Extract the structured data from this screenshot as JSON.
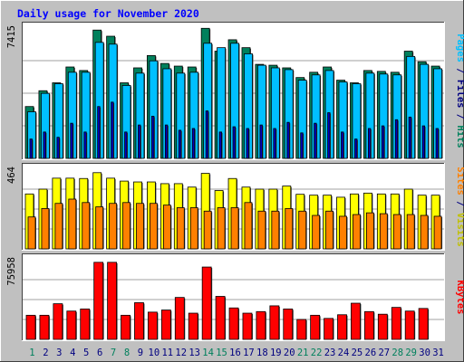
{
  "title": "Daily usage for November 2020",
  "colors": {
    "background": "#c0c0c0",
    "plot_background": "#ffffff",
    "title_text": "#0000ff",
    "hits": "#00805c",
    "files": "#00c0ff",
    "pages": "#0000c0",
    "visits": "#ffff00",
    "sites": "#ff8000",
    "kbytes": "#ff0000",
    "weekend_tick": "#00805c",
    "weekday_tick": "#000080"
  },
  "right_labels": {
    "top": [
      {
        "text": "Pages",
        "color": "#00c0ff"
      },
      {
        "text": " / ",
        "color": "#000080"
      },
      {
        "text": "Files",
        "color": "#000080"
      },
      {
        "text": " / ",
        "color": "#000080"
      },
      {
        "text": "Hits",
        "color": "#00805c"
      }
    ],
    "middle": [
      {
        "text": "Sites",
        "color": "#ff8000"
      },
      {
        "text": " / ",
        "color": "#000080"
      },
      {
        "text": "Visits",
        "color": "#c0c000"
      }
    ],
    "bottom": [
      {
        "text": "KBytes",
        "color": "#ff0000"
      }
    ]
  },
  "chart_data": [
    {
      "type": "bar",
      "panel": "hits-files-pages",
      "ymax_label": "7415",
      "ylim": [
        0,
        7415
      ],
      "categories": [
        "1",
        "2",
        "3",
        "4",
        "5",
        "6",
        "7",
        "8",
        "9",
        "10",
        "11",
        "12",
        "13",
        "14",
        "15",
        "16",
        "17",
        "18",
        "19",
        "20",
        "21",
        "22",
        "23",
        "24",
        "25",
        "26",
        "27",
        "28",
        "29",
        "30",
        "31"
      ],
      "weekend_days": [
        "1",
        "7",
        "8",
        "14",
        "15",
        "21",
        "22",
        "28",
        "29"
      ],
      "series": [
        {
          "name": "Hits",
          "values": [
            2950,
            3850,
            4300,
            5200,
            5000,
            7300,
            6950,
            4300,
            5150,
            5850,
            5400,
            5250,
            5200,
            7400,
            6100,
            6750,
            6300,
            5350,
            5300,
            5150,
            4600,
            4900,
            5200,
            4450,
            4300,
            5000,
            4950,
            4900,
            6100,
            5500,
            5250
          ]
        },
        {
          "name": "Files",
          "values": [
            2650,
            3700,
            4250,
            4900,
            4900,
            6600,
            6500,
            4150,
            4850,
            5550,
            5100,
            4850,
            4900,
            6550,
            6300,
            6550,
            5950,
            5300,
            5150,
            5050,
            4450,
            4750,
            5000,
            4350,
            4250,
            4850,
            4800,
            4750,
            5800,
            5350,
            5100
          ]
        },
        {
          "name": "Pages",
          "values": [
            1100,
            1500,
            1200,
            2000,
            1500,
            2950,
            3200,
            1500,
            1900,
            2400,
            1900,
            1600,
            1700,
            2700,
            1500,
            1800,
            1700,
            1900,
            1700,
            2050,
            1450,
            2000,
            2600,
            1500,
            1100,
            1700,
            1850,
            2200,
            2350,
            1850,
            1700
          ]
        }
      ]
    },
    {
      "type": "bar",
      "panel": "visits-sites",
      "ymax_label": "464",
      "ylim": [
        0,
        464
      ],
      "categories": [
        "1",
        "2",
        "3",
        "4",
        "5",
        "6",
        "7",
        "8",
        "9",
        "10",
        "11",
        "12",
        "13",
        "14",
        "15",
        "16",
        "17",
        "18",
        "19",
        "20",
        "21",
        "22",
        "23",
        "24",
        "25",
        "26",
        "27",
        "28",
        "29",
        "30",
        "31"
      ],
      "series": [
        {
          "name": "Visits",
          "values": [
            320,
            348,
            412,
            412,
            410,
            444,
            412,
            395,
            390,
            390,
            380,
            380,
            360,
            440,
            340,
            410,
            360,
            348,
            348,
            366,
            318,
            313,
            313,
            301,
            320,
            325,
            320,
            320,
            348,
            313,
            313
          ]
        },
        {
          "name": "Sites",
          "values": [
            186,
            235,
            265,
            290,
            270,
            245,
            265,
            270,
            265,
            265,
            255,
            240,
            240,
            220,
            240,
            240,
            270,
            220,
            220,
            235,
            220,
            195,
            220,
            190,
            200,
            210,
            205,
            200,
            200,
            195,
            190
          ]
        }
      ]
    },
    {
      "type": "bar",
      "panel": "kbytes",
      "ymax_label": "75958",
      "ylim": [
        0,
        75958
      ],
      "categories": [
        "1",
        "2",
        "3",
        "4",
        "5",
        "6",
        "7",
        "8",
        "9",
        "10",
        "11",
        "12",
        "13",
        "14",
        "15",
        "16",
        "17",
        "18",
        "19",
        "20",
        "21",
        "22",
        "23",
        "24",
        "25",
        "26",
        "27",
        "28",
        "29",
        "30",
        "31"
      ],
      "series": [
        {
          "name": "KBytes",
          "values": [
            23000,
            23000,
            34000,
            27000,
            29000,
            73500,
            73500,
            23000,
            35000,
            26000,
            28000,
            40000,
            25000,
            69000,
            41000,
            30000,
            25000,
            26500,
            32000,
            29000,
            19000,
            23000,
            20000,
            23500,
            34500,
            26500,
            24000,
            30500,
            27000,
            29500,
            0
          ]
        }
      ]
    }
  ]
}
